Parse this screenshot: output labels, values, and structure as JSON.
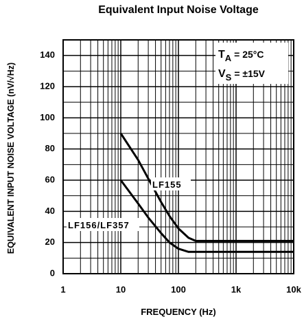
{
  "chart_data": {
    "type": "line",
    "title": "Equivalent Input Noise Voltage",
    "x_label": "FREQUENCY (Hz)",
    "y_label": "EQUIVALENT INPUT NOISE VOLTAGE (nV/√Hz)",
    "log_x": true,
    "grid": true,
    "xlim": [
      1,
      10000
    ],
    "xticks": [
      1,
      10,
      100,
      {
        "value": 1000,
        "label": "1k"
      },
      {
        "value": 10000,
        "label": "10k"
      }
    ],
    "ylim": [
      0,
      150
    ],
    "yticks": [
      0,
      20,
      40,
      60,
      80,
      100,
      120,
      140
    ],
    "x": [
      10,
      20,
      30,
      50,
      70,
      100,
      150,
      200,
      500,
      1000,
      10000
    ],
    "series": [
      {
        "name": "LF155",
        "color": "#000000",
        "values": [
          90,
          73,
          61,
          46,
          37,
          29,
          23,
          21,
          21,
          21,
          21
        ]
      },
      {
        "name": "LF156/LF357",
        "color": "#000000",
        "values": [
          60,
          45,
          36,
          26,
          20,
          16,
          14,
          14,
          14,
          14,
          14
        ]
      }
    ],
    "annotations": [
      {
        "symbol": "T",
        "subscript": "A",
        "text": "= 25°C"
      },
      {
        "symbol": "V",
        "subscript": "S",
        "text": "= ±15V"
      }
    ]
  }
}
